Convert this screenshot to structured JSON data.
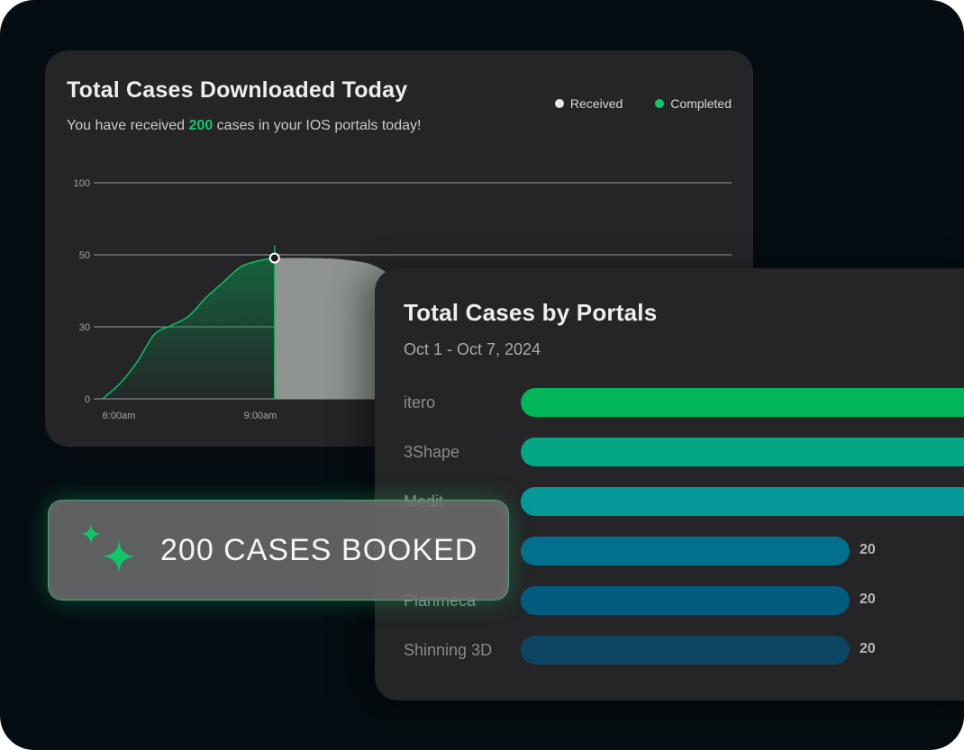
{
  "colors": {
    "completed": "#0ec76a",
    "received": "#e8e8e8",
    "card": "#252427",
    "background": "#050d12"
  },
  "downloads_card": {
    "title": "Total Cases Downloaded Today",
    "subtitle_before": "You have received ",
    "subtitle_highlight": "200",
    "subtitle_after": " cases in your IOS portals today!",
    "legend": [
      {
        "label": "Received",
        "color": "#e8e8e8"
      },
      {
        "label": "Completed",
        "color": "#0ec76a"
      }
    ]
  },
  "portals_card": {
    "title": "Total Cases by Portals",
    "date_range": "Oct 1 - Oct 7, 2024",
    "portal_labels": [
      "itero",
      "3Shape",
      "Medit",
      "",
      "Planmeca",
      "Shinning 3D"
    ],
    "bar_colors": [
      "#00b55a",
      "#04a683",
      "#06999a",
      "#036f8e",
      "#035b7e",
      "#0b4561"
    ]
  },
  "booked_badge": {
    "text": "200 CASES BOOKED",
    "icon": "sparkle-icon"
  },
  "chart_data": [
    {
      "type": "area",
      "title": "Total Cases Downloaded Today",
      "x_tick_labels": [
        "6:00am",
        "9:00am"
      ],
      "y_tick_labels": [
        "100",
        "50",
        "30",
        "0"
      ],
      "grid": true,
      "legend_position": "top-right",
      "series": [
        {
          "name": "Completed",
          "x": [
            0,
            0.5,
            1,
            1.5,
            2,
            2.5,
            3,
            3.5,
            4,
            4.5,
            5
          ],
          "values": [
            0,
            5,
            12,
            21,
            24,
            27,
            33,
            38,
            43,
            45,
            46
          ]
        },
        {
          "name": "Received",
          "x": [
            5,
            6,
            7,
            8,
            9,
            10
          ],
          "values": [
            46,
            46,
            45.5,
            43,
            34,
            20
          ]
        }
      ]
    },
    {
      "type": "bar",
      "title": "Total Cases by Portals",
      "categories": [
        "itero",
        "3Shape",
        "Medit",
        "",
        "Planmeca",
        "Shinning 3D"
      ],
      "values": [
        35,
        35,
        35,
        20,
        20,
        20
      ],
      "value_labels": [
        "",
        "",
        "",
        "20",
        "20",
        "20"
      ]
    }
  ]
}
